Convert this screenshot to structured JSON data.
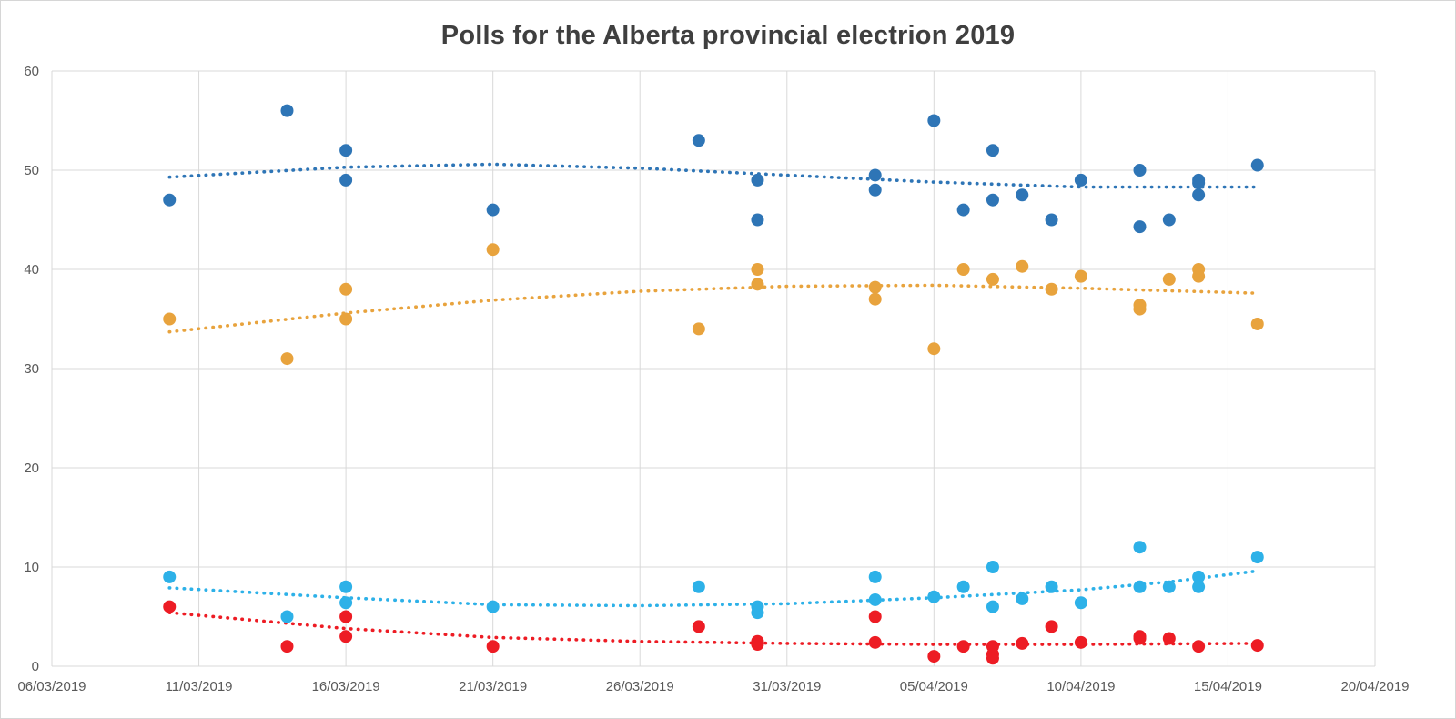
{
  "chart_data": {
    "type": "scatter",
    "title": "Polls for the Alberta provincial electrion 2019",
    "grid": true,
    "legend": "none",
    "x_axis": {
      "start": "06/03/2019",
      "end": "20/04/2019",
      "range_days": 45,
      "ticks": [
        "06/03/2019",
        "11/03/2019",
        "16/03/2019",
        "21/03/2019",
        "26/03/2019",
        "31/03/2019",
        "05/04/2019",
        "10/04/2019",
        "15/04/2019",
        "20/04/2019"
      ]
    },
    "y_axis": {
      "min": 0,
      "max": 60,
      "tick_step": 10,
      "ticks": [
        0,
        10,
        20,
        30,
        40,
        50,
        60
      ]
    },
    "series": [
      {
        "name": "series-dark-blue",
        "color": "#2E75B6",
        "points": [
          [
            "10/03/2019",
            47
          ],
          [
            "14/03/2019",
            56
          ],
          [
            "16/03/2019",
            52
          ],
          [
            "16/03/2019",
            49
          ],
          [
            "21/03/2019",
            46
          ],
          [
            "28/03/2019",
            53
          ],
          [
            "30/03/2019",
            49
          ],
          [
            "30/03/2019",
            45
          ],
          [
            "03/04/2019",
            49.5
          ],
          [
            "03/04/2019",
            48
          ],
          [
            "05/04/2019",
            55
          ],
          [
            "06/04/2019",
            46
          ],
          [
            "07/04/2019",
            52
          ],
          [
            "07/04/2019",
            47
          ],
          [
            "08/04/2019",
            47.5
          ],
          [
            "09/04/2019",
            45
          ],
          [
            "10/04/2019",
            49
          ],
          [
            "12/04/2019",
            50
          ],
          [
            "12/04/2019",
            44.3
          ],
          [
            "13/04/2019",
            45
          ],
          [
            "14/04/2019",
            49
          ],
          [
            "14/04/2019",
            48.7
          ],
          [
            "14/04/2019",
            47.5
          ],
          [
            "16/04/2019",
            50.5
          ]
        ],
        "trendline": [
          [
            "10/03/2019",
            49.3
          ],
          [
            "16/03/2019",
            50.3
          ],
          [
            "21/03/2019",
            50.6
          ],
          [
            "26/03/2019",
            50.2
          ],
          [
            "31/03/2019",
            49.5
          ],
          [
            "05/04/2019",
            48.8
          ],
          [
            "10/04/2019",
            48.3
          ],
          [
            "16/04/2019",
            48.3
          ]
        ]
      },
      {
        "name": "series-orange",
        "color": "#E8A33D",
        "points": [
          [
            "10/03/2019",
            35
          ],
          [
            "14/03/2019",
            31
          ],
          [
            "16/03/2019",
            38
          ],
          [
            "16/03/2019",
            35
          ],
          [
            "21/03/2019",
            42
          ],
          [
            "28/03/2019",
            34
          ],
          [
            "30/03/2019",
            40
          ],
          [
            "30/03/2019",
            38.5
          ],
          [
            "03/04/2019",
            38.2
          ],
          [
            "03/04/2019",
            37
          ],
          [
            "05/04/2019",
            32
          ],
          [
            "06/04/2019",
            40
          ],
          [
            "07/04/2019",
            39
          ],
          [
            "08/04/2019",
            40.3
          ],
          [
            "09/04/2019",
            38
          ],
          [
            "10/04/2019",
            39.3
          ],
          [
            "12/04/2019",
            36.4
          ],
          [
            "12/04/2019",
            36
          ],
          [
            "13/04/2019",
            39
          ],
          [
            "14/04/2019",
            40
          ],
          [
            "14/04/2019",
            39.3
          ],
          [
            "16/04/2019",
            34.5
          ]
        ],
        "trendline": [
          [
            "10/03/2019",
            33.7
          ],
          [
            "16/03/2019",
            35.6
          ],
          [
            "21/03/2019",
            36.9
          ],
          [
            "26/03/2019",
            37.8
          ],
          [
            "31/03/2019",
            38.3
          ],
          [
            "05/04/2019",
            38.4
          ],
          [
            "10/04/2019",
            38.1
          ],
          [
            "16/04/2019",
            37.6
          ]
        ]
      },
      {
        "name": "series-light-blue",
        "color": "#2DB1E8",
        "points": [
          [
            "10/03/2019",
            9
          ],
          [
            "14/03/2019",
            5
          ],
          [
            "16/03/2019",
            8
          ],
          [
            "16/03/2019",
            6.4
          ],
          [
            "21/03/2019",
            6
          ],
          [
            "28/03/2019",
            8
          ],
          [
            "30/03/2019",
            6
          ],
          [
            "30/03/2019",
            5.4
          ],
          [
            "03/04/2019",
            9
          ],
          [
            "03/04/2019",
            6.7
          ],
          [
            "05/04/2019",
            7
          ],
          [
            "06/04/2019",
            8
          ],
          [
            "07/04/2019",
            10
          ],
          [
            "07/04/2019",
            6
          ],
          [
            "08/04/2019",
            6.8
          ],
          [
            "09/04/2019",
            8
          ],
          [
            "10/04/2019",
            6.4
          ],
          [
            "12/04/2019",
            12
          ],
          [
            "12/04/2019",
            8
          ],
          [
            "13/04/2019",
            8
          ],
          [
            "14/04/2019",
            9
          ],
          [
            "14/04/2019",
            8
          ],
          [
            "16/04/2019",
            11
          ]
        ],
        "trendline": [
          [
            "10/03/2019",
            7.9
          ],
          [
            "16/03/2019",
            6.9
          ],
          [
            "21/03/2019",
            6.2
          ],
          [
            "26/03/2019",
            6.1
          ],
          [
            "31/03/2019",
            6.3
          ],
          [
            "05/04/2019",
            6.9
          ],
          [
            "10/04/2019",
            7.7
          ],
          [
            "13/04/2019",
            8.5
          ],
          [
            "16/04/2019",
            9.6
          ]
        ]
      },
      {
        "name": "series-red",
        "color": "#ED1C24",
        "points": [
          [
            "10/03/2019",
            6
          ],
          [
            "14/03/2019",
            2
          ],
          [
            "16/03/2019",
            5
          ],
          [
            "16/03/2019",
            3
          ],
          [
            "21/03/2019",
            2
          ],
          [
            "28/03/2019",
            4
          ],
          [
            "30/03/2019",
            2.5
          ],
          [
            "30/03/2019",
            2.2
          ],
          [
            "03/04/2019",
            5
          ],
          [
            "03/04/2019",
            2.4
          ],
          [
            "05/04/2019",
            1
          ],
          [
            "06/04/2019",
            2
          ],
          [
            "07/04/2019",
            2
          ],
          [
            "07/04/2019",
            1.2
          ],
          [
            "07/04/2019",
            0.8
          ],
          [
            "08/04/2019",
            2.3
          ],
          [
            "09/04/2019",
            4
          ],
          [
            "10/04/2019",
            2.4
          ],
          [
            "12/04/2019",
            3
          ],
          [
            "12/04/2019",
            2.8
          ],
          [
            "13/04/2019",
            2.8
          ],
          [
            "14/04/2019",
            2
          ],
          [
            "16/04/2019",
            2.1
          ]
        ],
        "trendline": [
          [
            "10/03/2019",
            5.4
          ],
          [
            "16/03/2019",
            3.8
          ],
          [
            "21/03/2019",
            2.9
          ],
          [
            "26/03/2019",
            2.5
          ],
          [
            "31/03/2019",
            2.3
          ],
          [
            "05/04/2019",
            2.2
          ],
          [
            "10/04/2019",
            2.2
          ],
          [
            "16/04/2019",
            2.3
          ]
        ]
      }
    ]
  }
}
